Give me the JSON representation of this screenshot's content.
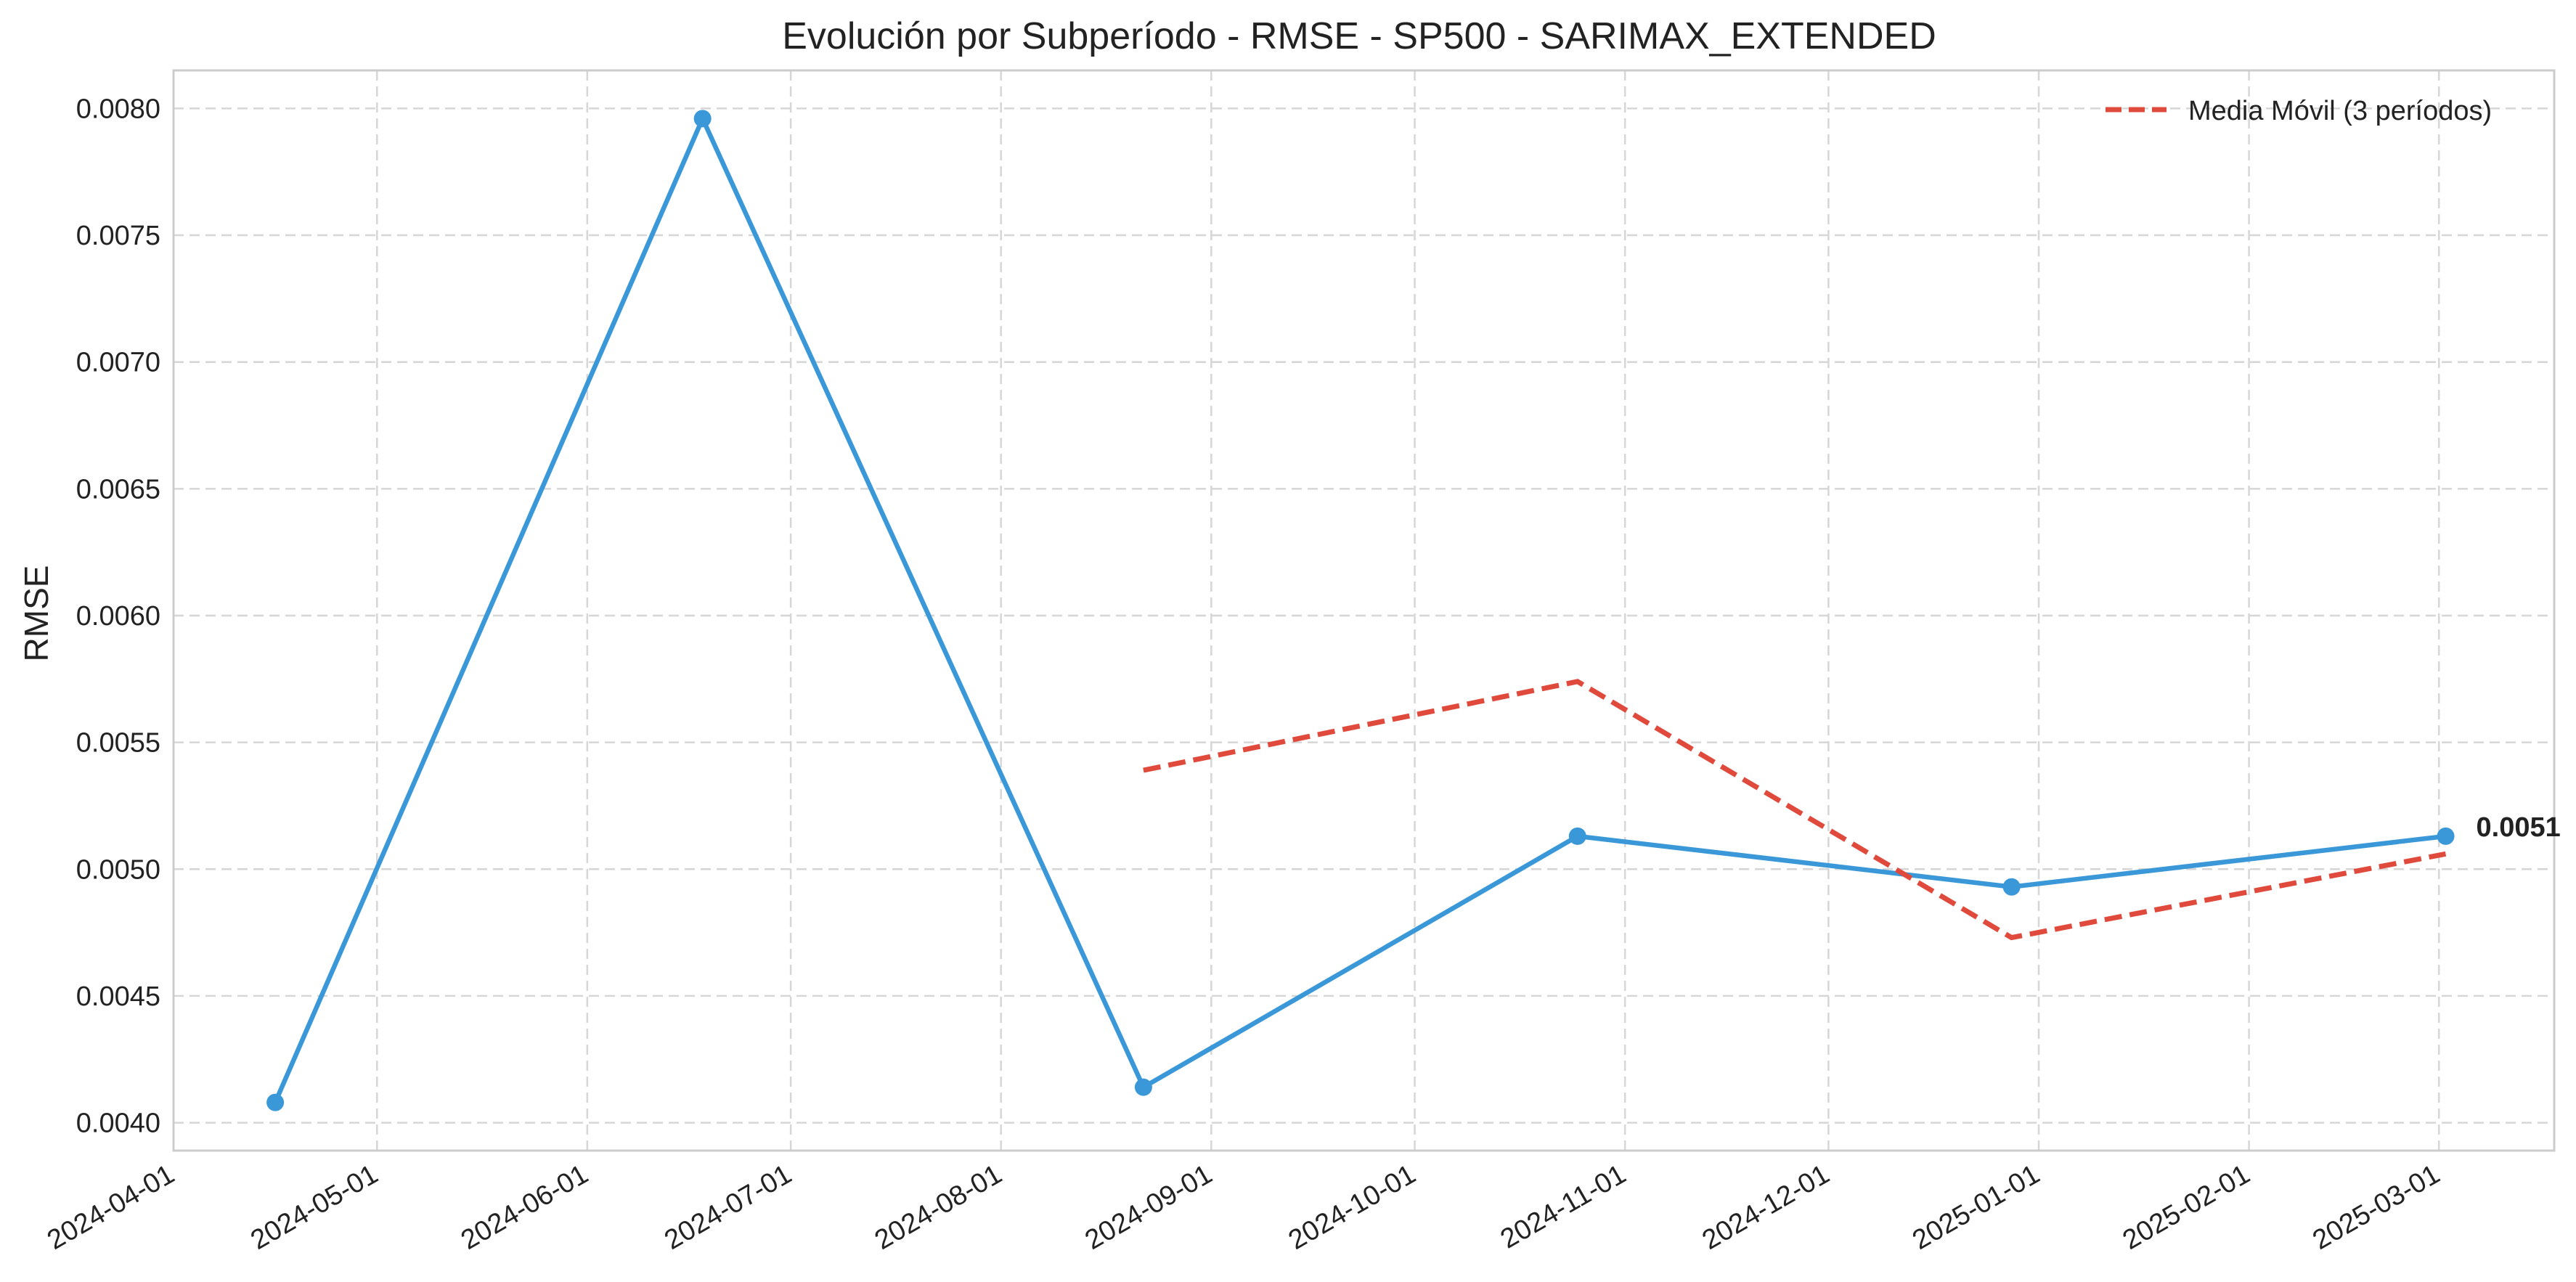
{
  "chart_data": {
    "type": "line",
    "title": "Evolución por Subperíodo - RMSE - SP500 - SARIMAX_EXTENDED",
    "xlabel": "",
    "ylabel": "RMSE",
    "x_ticks": [
      "2024-04-01",
      "2024-05-01",
      "2024-06-01",
      "2024-07-01",
      "2024-08-01",
      "2024-09-01",
      "2024-10-01",
      "2024-11-01",
      "2024-12-01",
      "2025-01-01",
      "2025-02-01",
      "2025-03-01"
    ],
    "y_ticks": [
      "0.0040",
      "0.0045",
      "0.0050",
      "0.0055",
      "0.0060",
      "0.0065",
      "0.0070",
      "0.0075",
      "0.0080"
    ],
    "xlim": [
      "2024-04-01",
      "2025-03-18"
    ],
    "ylim": [
      0.00389,
      0.00815
    ],
    "grid": true,
    "legend_position": "top-right",
    "series": [
      {
        "color": "#3a98d8",
        "style": "solid",
        "markers": true,
        "x": [
          "2024-04-16",
          "2024-06-18",
          "2024-08-22",
          "2024-10-25",
          "2024-12-28",
          "2025-03-02"
        ],
        "values": [
          0.00408,
          0.00796,
          0.00414,
          0.00513,
          0.00493,
          0.00513
        ]
      },
      {
        "name": "Media Móvil (3 períodos)",
        "color": "#e04a3c",
        "style": "dashed",
        "markers": false,
        "x": [
          "2024-08-22",
          "2024-10-25",
          "2024-12-28",
          "2025-03-02"
        ],
        "values": [
          0.00539,
          0.00574,
          0.00473,
          0.00506
        ]
      }
    ],
    "annotations": [
      {
        "text": "0.0051",
        "x": "2025-03-02",
        "y": 0.00513
      }
    ]
  }
}
